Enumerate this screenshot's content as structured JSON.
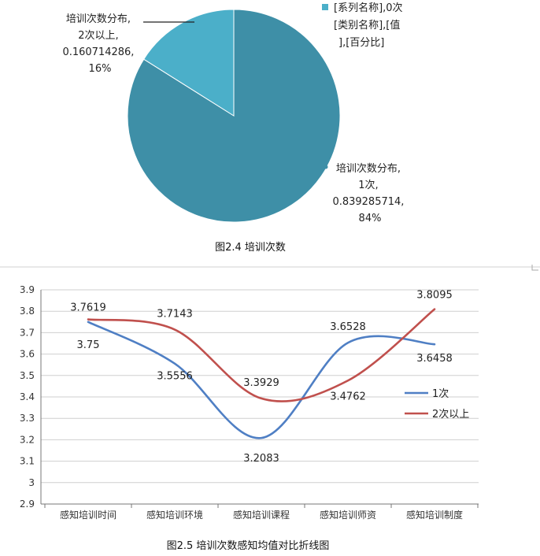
{
  "chart_data": [
    {
      "type": "pie",
      "title": "",
      "caption": "图2.4  培训次数",
      "legend_entry_lines": [
        "[系列名称],0次",
        "[类别名称],[值",
        "],[百分比]"
      ],
      "slices": [
        {
          "category": "1次",
          "value": 0.839285714,
          "percent": "84%",
          "label_lines": [
            "培训次数分布,",
            "1次,",
            "0.839285714,",
            "84%"
          ],
          "color": "#3e8fa7"
        },
        {
          "category": "2次以上",
          "value": 0.160714286,
          "percent": "16%",
          "label_lines": [
            "培训次数分布,",
            "2次以上,",
            "0.160714286,",
            "16%"
          ],
          "color": "#4bafc9"
        }
      ]
    },
    {
      "type": "line",
      "title": "",
      "caption": "图2.5  培训次数感知均值对比折线图",
      "categories": [
        "感知培训时间",
        "感知培训环境",
        "感知培训课程",
        "感知培训师资",
        "感知培训制度"
      ],
      "ylim": [
        2.9,
        3.9
      ],
      "yticks": [
        "2.9",
        "3",
        "3.1",
        "3.2",
        "3.3",
        "3.4",
        "3.5",
        "3.6",
        "3.7",
        "3.8",
        "3.9"
      ],
      "grid": true,
      "legend_position": "right",
      "series": [
        {
          "name": "1次",
          "values": [
            3.75,
            3.5556,
            3.2083,
            3.6528,
            3.6458
          ],
          "labels": [
            "3.75",
            "3.5556",
            "3.2083",
            "3.6528",
            "3.6458"
          ],
          "color": "#4f7fc4"
        },
        {
          "name": "2次以上",
          "values": [
            3.7619,
            3.7143,
            3.3929,
            3.4762,
            3.8095
          ],
          "labels": [
            "3.7619",
            "3.7143",
            "3.3929",
            "3.4762",
            "3.8095"
          ],
          "color": "#c0504d"
        }
      ]
    }
  ]
}
